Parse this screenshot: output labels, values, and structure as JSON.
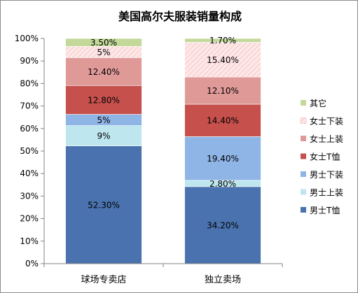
{
  "chart_data": {
    "type": "bar",
    "stacked": true,
    "percent": true,
    "title": "美国高尔夫服装销量构成",
    "xlabel": "",
    "ylabel": "",
    "ylim": [
      0,
      100
    ],
    "y_ticks": [
      "0%",
      "10%",
      "20%",
      "30%",
      "40%",
      "50%",
      "60%",
      "70%",
      "80%",
      "90%",
      "100%"
    ],
    "grid": false,
    "legend_position": "right",
    "categories": [
      "球场专卖店",
      "独立卖场"
    ],
    "series": [
      {
        "name": "男士T恤",
        "values": [
          52.3,
          34.2
        ],
        "labels": [
          "52.30%",
          "34.20%"
        ],
        "color": "#4a72ae",
        "label_color": "#000000"
      },
      {
        "name": "男士上装",
        "values": [
          9,
          2.8
        ],
        "labels": [
          "9%",
          "2.80%"
        ],
        "color": "#bde6ee",
        "label_color": "#000000"
      },
      {
        "name": "男士下装",
        "values": [
          5,
          19.4
        ],
        "labels": [
          "5%",
          "19.40%"
        ],
        "color": "#8fb4e6",
        "label_color": "#000000"
      },
      {
        "name": "女士T恤",
        "values": [
          12.8,
          14.4
        ],
        "labels": [
          "12.80%",
          "14.40%"
        ],
        "color": "#c5504c",
        "label_color": "#000000"
      },
      {
        "name": "女士上装",
        "values": [
          12.4,
          12.1
        ],
        "labels": [
          "12.40%",
          "12.10%"
        ],
        "color": "#df9a98",
        "label_color": "#000000"
      },
      {
        "name": "女士下装",
        "values": [
          5,
          15.4
        ],
        "labels": [
          "5%",
          "15.40%"
        ],
        "color": "#fbe3e3",
        "label_color": "#000000",
        "pattern": "hatch"
      },
      {
        "name": "其它",
        "values": [
          3.5,
          1.7
        ],
        "labels": [
          "3.50%",
          "1.70%"
        ],
        "color": "#c3d99a",
        "label_color": "#000000"
      }
    ]
  }
}
